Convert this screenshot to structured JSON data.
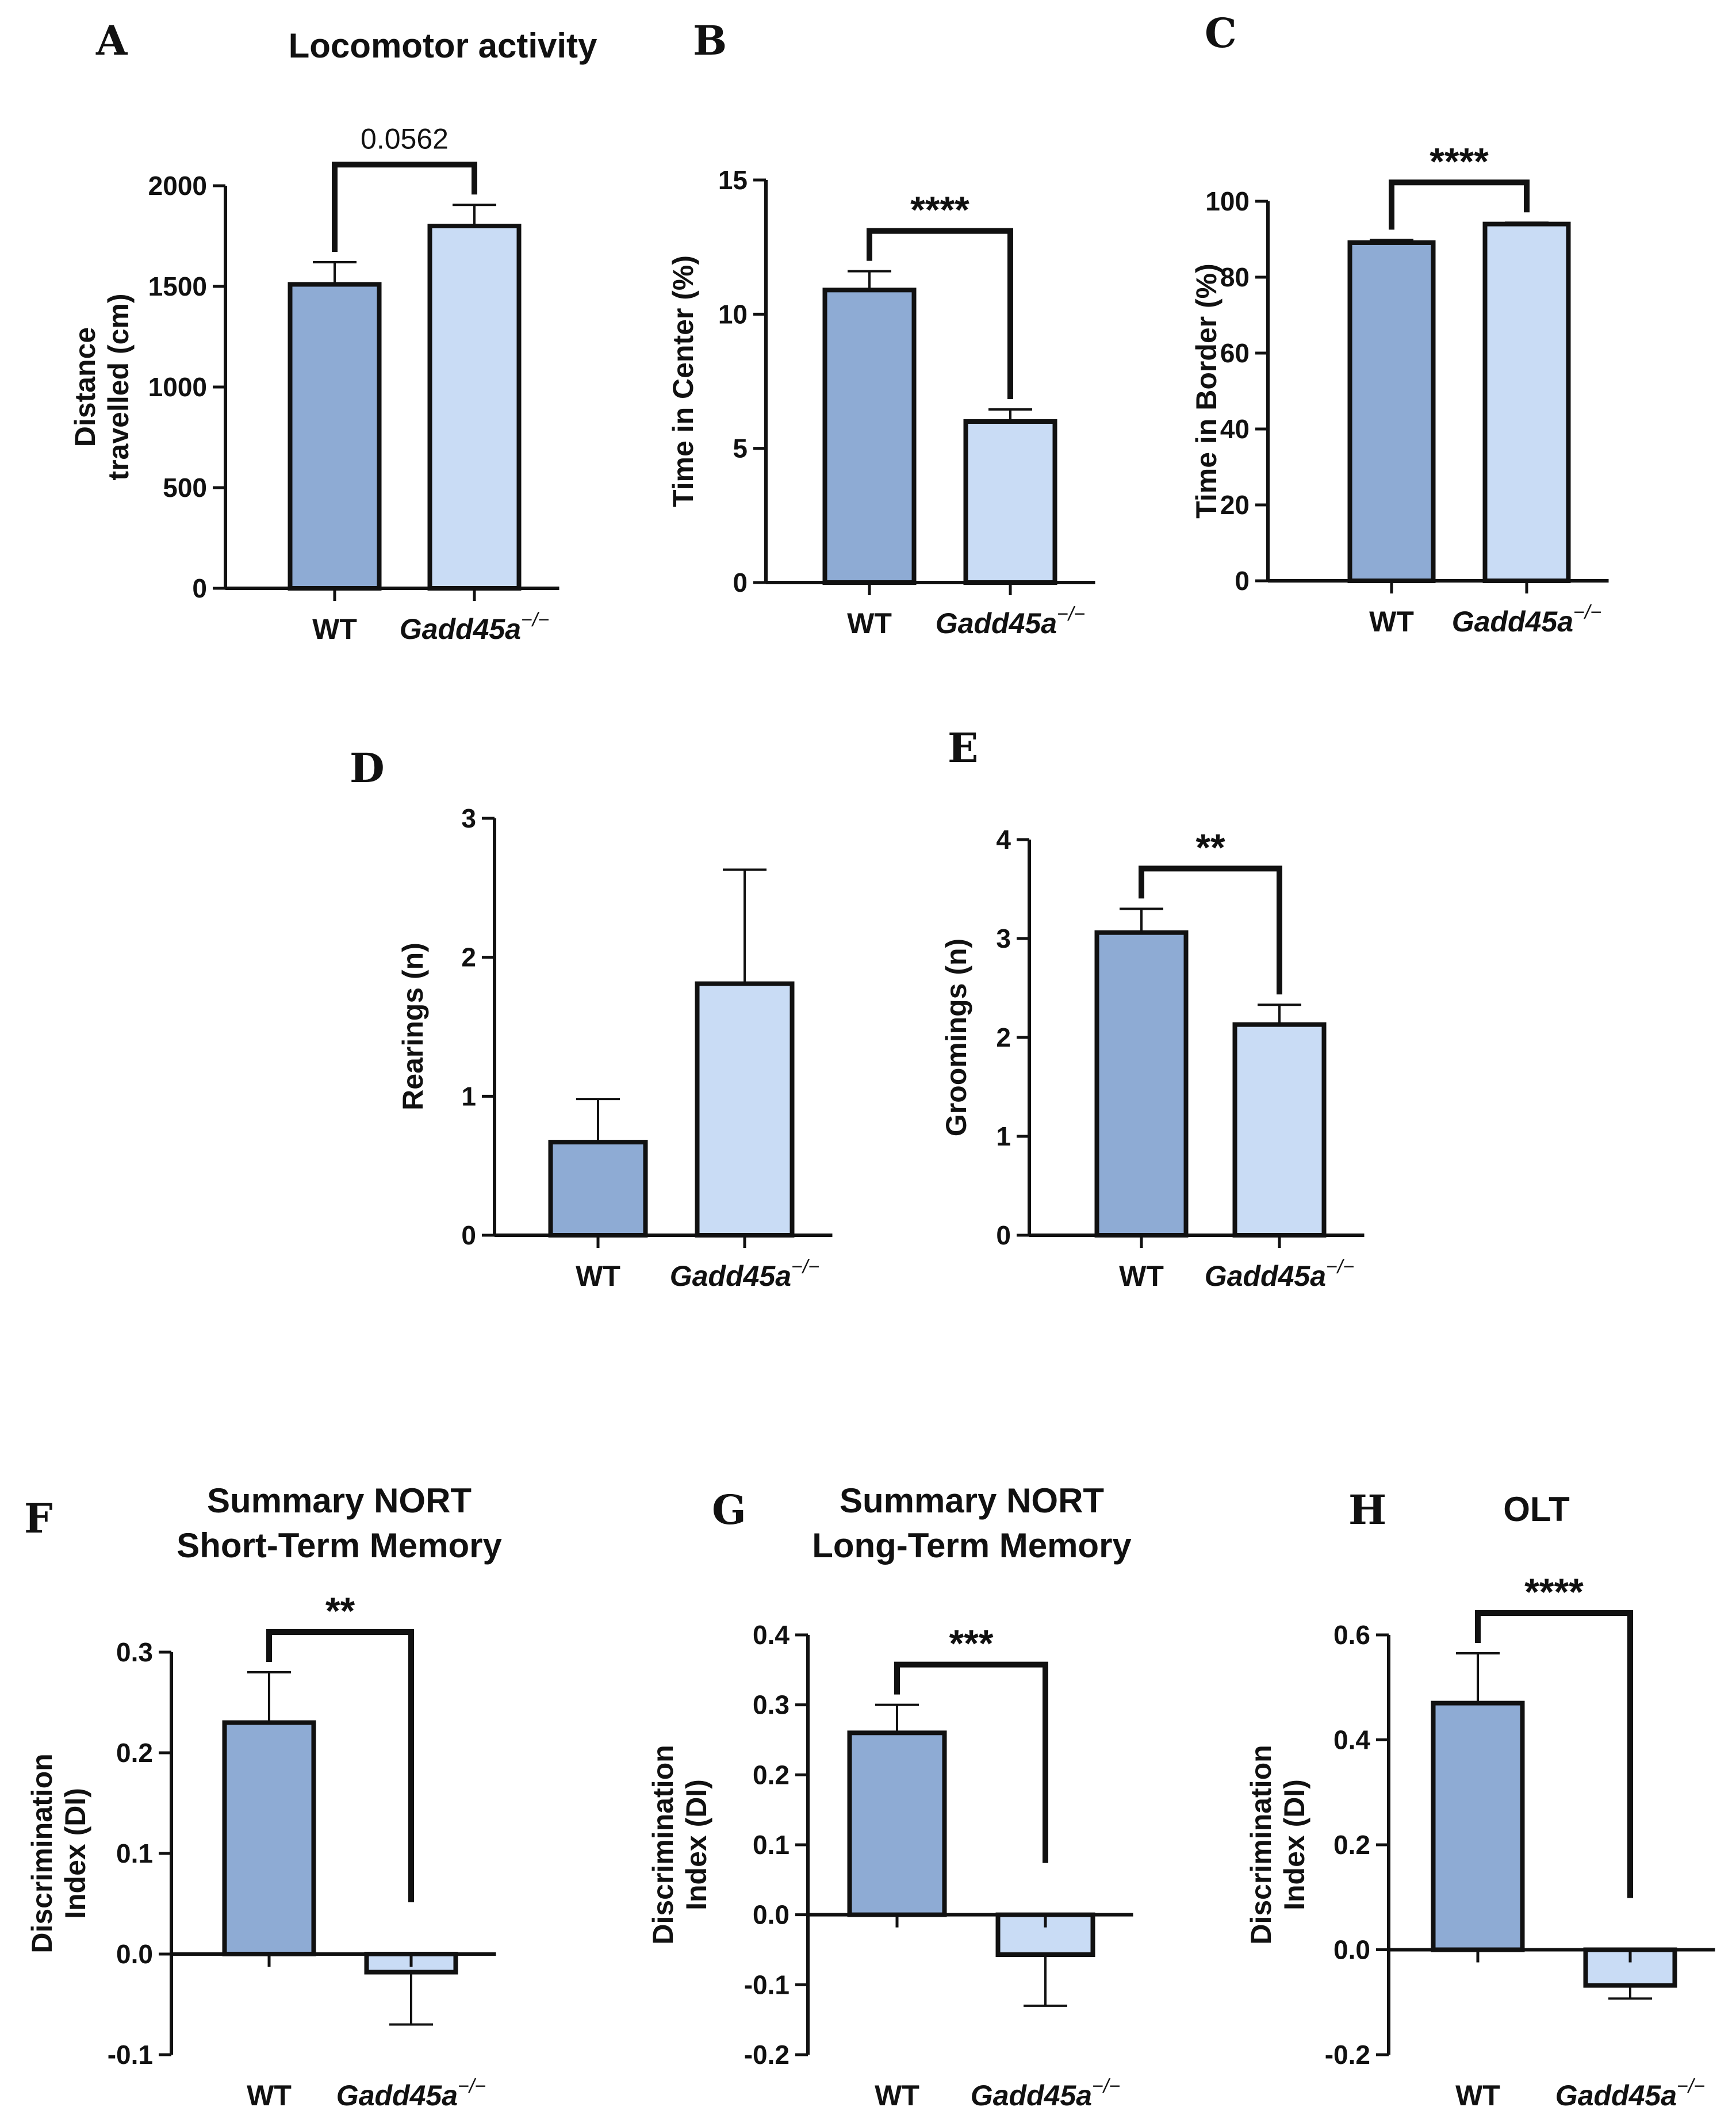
{
  "figure": {
    "bar_colors": [
      "#8eabd4",
      "#c9dcf5"
    ],
    "ink": "#111111"
  },
  "chart_data": [
    {
      "panel": "A",
      "type": "bar",
      "title": "Locomotor activity",
      "ylabel": [
        "Distance",
        "travelled (cm)"
      ],
      "categories": [
        "WT",
        "Gadd45a−/−"
      ],
      "values": [
        1510,
        1800
      ],
      "errors": [
        110,
        105
      ],
      "ylim": [
        0,
        2000
      ],
      "yticks": [
        0,
        500,
        1000,
        1500,
        2000
      ],
      "ytick_labels": [
        "0",
        "500",
        "1000",
        "1500",
        "2000"
      ],
      "significance": "0.0562",
      "sig_plain": true
    },
    {
      "panel": "B",
      "type": "bar",
      "title": "",
      "ylabel": [
        "Time in Center (%)"
      ],
      "categories": [
        "WT",
        "Gadd45a−/−"
      ],
      "values": [
        10.9,
        6.0
      ],
      "errors": [
        0.7,
        0.45
      ],
      "ylim": [
        0,
        15
      ],
      "yticks": [
        0,
        5,
        10,
        15
      ],
      "ytick_labels": [
        "0",
        "5",
        "10",
        "15"
      ],
      "significance": "****"
    },
    {
      "panel": "C",
      "type": "bar",
      "title": "",
      "ylabel": [
        "Time in Border (%)"
      ],
      "categories": [
        "WT",
        "Gadd45a−/−"
      ],
      "values": [
        89.1,
        94.0
      ],
      "errors": [
        0.7,
        0.35
      ],
      "ylim": [
        0,
        100
      ],
      "yticks": [
        0,
        20,
        40,
        60,
        80,
        100
      ],
      "ytick_labels": [
        "0",
        "20",
        "40",
        "60",
        "80",
        "100"
      ],
      "significance": "****"
    },
    {
      "panel": "D",
      "type": "bar",
      "title": "",
      "ylabel": [
        "Rearings (n)"
      ],
      "categories": [
        "WT",
        "Gadd45a−/−"
      ],
      "values": [
        0.67,
        1.81
      ],
      "errors": [
        0.31,
        0.82
      ],
      "ylim": [
        0,
        3
      ],
      "yticks": [
        0,
        1,
        2,
        3
      ],
      "ytick_labels": [
        "0",
        "1",
        "2",
        "3"
      ],
      "significance": ""
    },
    {
      "panel": "E",
      "type": "bar",
      "title": "",
      "ylabel": [
        "Groomings (n)"
      ],
      "categories": [
        "WT",
        "Gadd45a−/−"
      ],
      "values": [
        3.06,
        2.13
      ],
      "errors": [
        0.24,
        0.2
      ],
      "ylim": [
        0,
        4
      ],
      "yticks": [
        0,
        1,
        2,
        3,
        4
      ],
      "ytick_labels": [
        "0",
        "1",
        "2",
        "3",
        "4"
      ],
      "significance": "**"
    },
    {
      "panel": "F",
      "type": "bar",
      "title": "Summary NORT\nShort-Term Memory",
      "ylabel": [
        "Discrimination",
        "Index (DI)"
      ],
      "categories": [
        "WT",
        "Gadd45a−/−"
      ],
      "values": [
        0.23,
        -0.018
      ],
      "errors": [
        0.05,
        0.052
      ],
      "ylim": [
        -0.1,
        0.3
      ],
      "yticks": [
        -0.1,
        0,
        0.1,
        0.2,
        0.3
      ],
      "ytick_labels": [
        "-0.1",
        "0.0",
        "0.1",
        "0.2",
        "0.3"
      ],
      "significance": "**"
    },
    {
      "panel": "G",
      "type": "bar",
      "title": "Summary NORT\nLong-Term Memory",
      "ylabel": [
        "Discrimination",
        "Index (DI)"
      ],
      "categories": [
        "WT",
        "Gadd45a−/−"
      ],
      "values": [
        0.26,
        -0.057
      ],
      "errors": [
        0.04,
        0.073
      ],
      "ylim": [
        -0.2,
        0.4
      ],
      "yticks": [
        -0.2,
        -0.1,
        0,
        0.1,
        0.2,
        0.3,
        0.4
      ],
      "ytick_labels": [
        "-0.2",
        "-0.1",
        "0.0",
        "0.1",
        "0.2",
        "0.3",
        "0.4"
      ],
      "significance": "***"
    },
    {
      "panel": "H",
      "type": "bar",
      "title": "OLT",
      "ylabel": [
        "Discrimination",
        "Index (DI)"
      ],
      "categories": [
        "WT",
        "Gadd45a−/−"
      ],
      "values": [
        0.47,
        -0.068
      ],
      "errors": [
        0.095,
        0.025
      ],
      "ylim": [
        -0.2,
        0.6
      ],
      "yticks": [
        -0.2,
        0,
        0.2,
        0.4,
        0.6
      ],
      "ytick_labels": [
        "-0.2",
        "0.0",
        "0.2",
        "0.4",
        "0.6"
      ],
      "significance": "****"
    }
  ]
}
